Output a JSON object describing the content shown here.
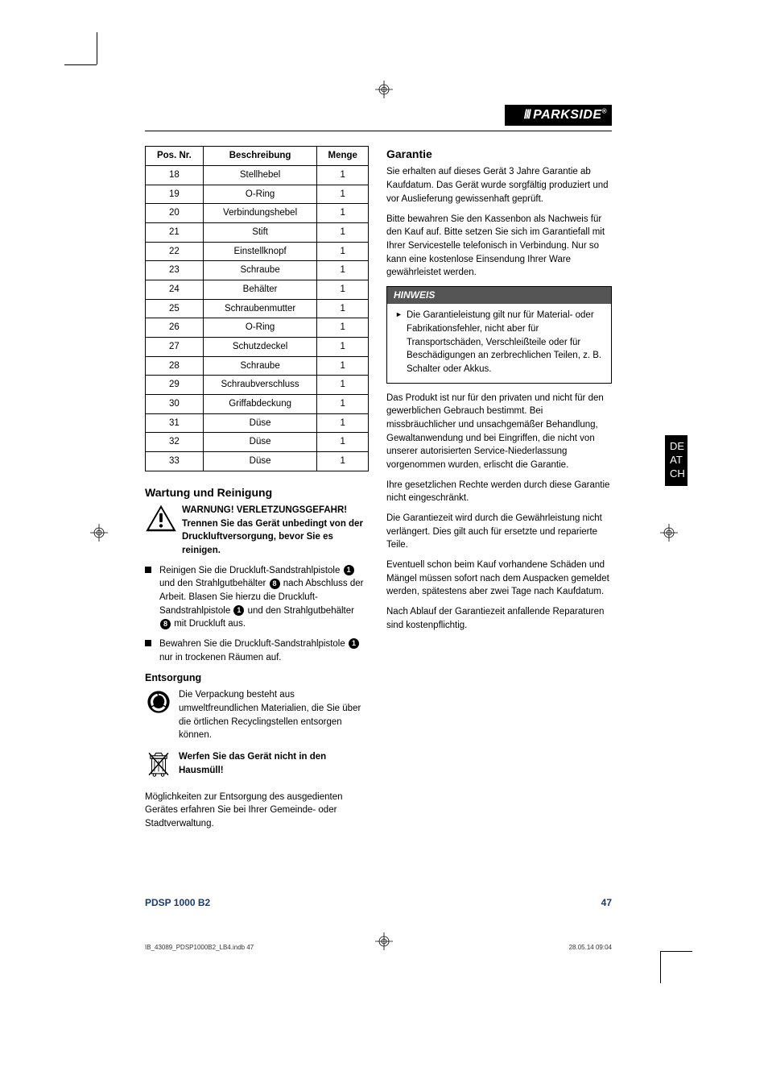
{
  "brand": "PARKSIDE",
  "sideTab": [
    "DE",
    "AT",
    "CH"
  ],
  "footer": {
    "model": "PDSP 1000 B2",
    "page": "47"
  },
  "printLine": {
    "left": "IB_43089_PDSP1000B2_LB4.indb   47",
    "right": "28.05.14   09:04"
  },
  "table": {
    "headers": [
      "Pos. Nr.",
      "Beschreibung",
      "Menge"
    ],
    "rows": [
      [
        "18",
        "Stellhebel",
        "1"
      ],
      [
        "19",
        "O-Ring",
        "1"
      ],
      [
        "20",
        "Verbindungshebel",
        "1"
      ],
      [
        "21",
        "Stift",
        "1"
      ],
      [
        "22",
        "Einstellknopf",
        "1"
      ],
      [
        "23",
        "Schraube",
        "1"
      ],
      [
        "24",
        "Behälter",
        "1"
      ],
      [
        "25",
        "Schraubenmutter",
        "1"
      ],
      [
        "26",
        "O-Ring",
        "1"
      ],
      [
        "27",
        "Schutzdeckel",
        "1"
      ],
      [
        "28",
        "Schraube",
        "1"
      ],
      [
        "29",
        "Schraubverschluss",
        "1"
      ],
      [
        "30",
        "Griffabdeckung",
        "1"
      ],
      [
        "31",
        "Düse",
        "1"
      ],
      [
        "32",
        "Düse",
        "1"
      ],
      [
        "33",
        "Düse",
        "1"
      ]
    ]
  },
  "maintenance": {
    "heading": "Wartung und Reinigung",
    "warnTitle": "WARNUNG! VERLETZUNGSGEFAHR! Trennen Sie das Gerät unbedingt von der Druckluftversorgung, bevor Sie es reinigen.",
    "bullet1a": "Reinigen Sie die Druckluft-Sandstrahlpistole ",
    "bullet1b": " und den Strahlgutbehälter ",
    "bullet1c": " nach Abschluss der Arbeit. Blasen Sie hierzu die Druckluft-Sandstrahlpistole ",
    "bullet1d": " und den Strahlgutbehälter ",
    "bullet1e": " mit Druckluft aus.",
    "bullet2a": "Bewahren Sie die Druckluft-Sandstrahlpistole ",
    "bullet2b": " nur in trockenen Räumen auf."
  },
  "disposal": {
    "heading": "Entsorgung",
    "text1": "Die Verpackung besteht aus umweltfreundlichen Materialien, die Sie über die örtlichen Recyclingstellen entsorgen können.",
    "text2": "Werfen Sie das Gerät nicht in den Hausmüll!",
    "text3": "Möglichkeiten zur Entsorgung des ausgedienten Gerätes erfahren Sie bei Ihrer Gemeinde- oder Stadtverwaltung."
  },
  "warranty": {
    "heading": "Garantie",
    "p1": "Sie erhalten auf dieses Gerät 3 Jahre Garantie ab Kaufdatum. Das Gerät wurde sorgfältig produziert und vor Auslieferung gewissenhaft geprüft.",
    "p2": "Bitte bewahren Sie den Kassenbon als Nachweis für den Kauf auf. Bitte setzen Sie sich im Garantiefall mit Ihrer Servicestelle telefonisch in Verbindung. Nur so kann eine kostenlose Einsendung Ihrer Ware gewährleistet werden.",
    "noteHead": "HINWEIS",
    "noteBody": "Die Garantieleistung gilt nur für Material- oder Fabrikationsfehler, nicht aber für Transportschäden, Verschleißteile oder für Beschädigungen an zerbrechlichen Teilen, z. B. Schalter oder Akkus.",
    "p3": "Das Produkt ist nur für den privaten und nicht für den gewerblichen Gebrauch bestimmt. Bei missbräuchlicher und unsachgemäßer Behandlung, Gewaltanwendung und bei Eingriffen, die nicht von unserer autorisierten Service-Niederlassung vorgenommen wurden, erlischt die Garantie.",
    "p4": "Ihre gesetzlichen Rechte werden durch diese Garantie nicht eingeschränkt.",
    "p5": "Die Garantiezeit wird durch die Gewährleistung nicht verlängert. Dies gilt auch für ersetzte und reparierte Teile.",
    "p6": "Eventuell schon beim Kauf vorhandene Schäden und Mängel müssen sofort nach dem Auspacken gemeldet werden, spätestens aber zwei Tage nach Kaufdatum.",
    "p7": "Nach Ablauf der Garantiezeit anfallende Reparaturen sind kostenpflichtig."
  },
  "refs": {
    "one": "1",
    "eight": "8"
  }
}
